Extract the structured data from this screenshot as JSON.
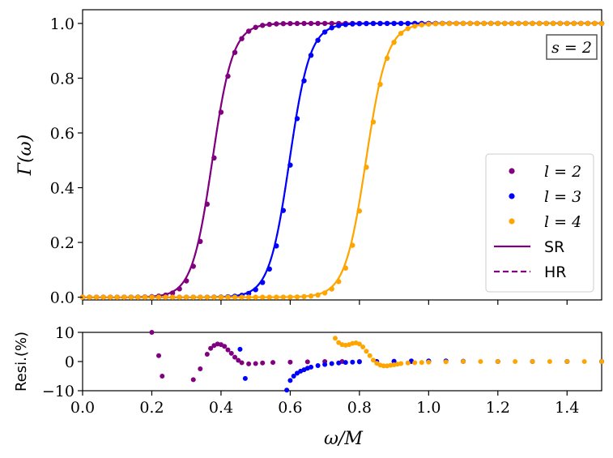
{
  "chart_data": [
    {
      "type": "line",
      "ylabel": "Γ(ω)",
      "xlim": [
        0.0,
        1.5
      ],
      "ylim": [
        -0.01,
        1.05
      ],
      "y_ticks": [
        "0.0",
        "0.2",
        "0.4",
        "0.6",
        "0.8",
        "1.0"
      ],
      "y_tick_values": [
        0.0,
        0.2,
        0.4,
        0.6,
        0.8,
        1.0
      ],
      "annotation": "s = 2",
      "legend_position": "lower-right",
      "legend": [
        {
          "label": "l = 2",
          "kind": "dots",
          "color": "#800080"
        },
        {
          "label": "l = 3",
          "kind": "dots",
          "color": "#0000ff"
        },
        {
          "label": "l = 4",
          "kind": "dots",
          "color": "#ffa500"
        },
        {
          "label": "SR",
          "kind": "solid",
          "color": "#800080"
        },
        {
          "label": "HR",
          "kind": "dashed",
          "color": "#800080"
        }
      ],
      "series": [
        {
          "name": "l = 2",
          "color": "#800080",
          "x0": 0.375,
          "width": 0.0295
        },
        {
          "name": "l = 3",
          "color": "#0000ff",
          "x0": 0.598,
          "width": 0.0295
        },
        {
          "name": "l = 4",
          "color": "#ffa500",
          "x0": 0.819,
          "width": 0.0305
        }
      ],
      "dot_x_range": [
        0.0,
        1.5
      ],
      "dot_count": 76
    },
    {
      "type": "scatter",
      "ylabel": "Resi.(%)",
      "xlabel": "ω/M",
      "xlim": [
        0.0,
        1.5
      ],
      "ylim": [
        -10,
        10
      ],
      "x_ticks": [
        "0.0",
        "0.2",
        "0.4",
        "0.6",
        "0.8",
        "1.0",
        "1.2",
        "1.4"
      ],
      "x_tick_values": [
        0.0,
        0.2,
        0.4,
        0.6,
        0.8,
        1.0,
        1.2,
        1.4
      ],
      "y_ticks": [
        "10",
        "0",
        "−10"
      ],
      "y_tick_values": [
        10,
        0,
        -10
      ],
      "series": [
        {
          "name": "l = 2",
          "color": "#800080",
          "x": [
            0.2,
            0.22,
            0.23,
            0.32,
            0.34,
            0.36,
            0.37,
            0.38,
            0.39,
            0.4,
            0.41,
            0.42,
            0.43,
            0.44,
            0.45,
            0.46,
            0.48,
            0.5,
            0.52,
            0.55,
            0.6,
            0.65,
            0.7,
            0.75,
            0.8,
            0.85,
            0.9,
            0.95,
            1.0,
            1.1,
            1.2,
            1.3,
            1.4,
            1.5
          ],
          "y": [
            10.0,
            2.0,
            -5.0,
            -6.2,
            -2.5,
            2.5,
            4.5,
            5.5,
            6.0,
            5.8,
            5.2,
            4.0,
            2.8,
            1.5,
            0.4,
            -0.4,
            -0.8,
            -0.7,
            -0.5,
            -0.3,
            -0.2,
            -0.1,
            0.0,
            0.0,
            0.0,
            0.0,
            0.0,
            0.0,
            0.0,
            0.0,
            0.0,
            0.0,
            0.0,
            0.0
          ]
        },
        {
          "name": "l = 3",
          "color": "#0000ff",
          "x": [
            0.455,
            0.47,
            0.59,
            0.6,
            0.61,
            0.62,
            0.63,
            0.64,
            0.65,
            0.66,
            0.68,
            0.7,
            0.72,
            0.74,
            0.76,
            0.78,
            0.8,
            0.85,
            0.9,
            0.95,
            1.0,
            1.05,
            1.1,
            1.2,
            1.3,
            1.4,
            1.5
          ],
          "y": [
            4.2,
            -5.8,
            -9.8,
            -6.5,
            -5.0,
            -4.0,
            -3.3,
            -2.8,
            -2.3,
            -1.9,
            -1.4,
            -1.0,
            -0.7,
            -0.5,
            -0.3,
            -0.2,
            -0.1,
            0.0,
            0.1,
            0.2,
            0.2,
            0.2,
            0.1,
            0.0,
            0.0,
            0.0,
            0.0
          ]
        },
        {
          "name": "l = 4",
          "color": "#ffa500",
          "x": [
            0.73,
            0.74,
            0.75,
            0.76,
            0.77,
            0.78,
            0.79,
            0.8,
            0.81,
            0.82,
            0.83,
            0.84,
            0.85,
            0.86,
            0.87,
            0.88,
            0.89,
            0.9,
            0.91,
            0.92,
            0.94,
            0.96,
            0.98,
            1.0,
            1.05,
            1.1,
            1.15,
            1.2,
            1.25,
            1.3,
            1.35,
            1.4,
            1.45,
            1.5
          ],
          "y": [
            8.0,
            6.5,
            5.8,
            5.6,
            5.8,
            6.2,
            6.4,
            6.0,
            5.0,
            3.5,
            2.0,
            0.5,
            -0.6,
            -1.2,
            -1.5,
            -1.5,
            -1.3,
            -1.1,
            -0.9,
            -0.7,
            -0.5,
            -0.4,
            -0.3,
            -0.2,
            -0.1,
            0.0,
            0.0,
            0.0,
            0.0,
            0.0,
            0.0,
            0.0,
            0.0,
            0.0
          ]
        }
      ]
    }
  ]
}
